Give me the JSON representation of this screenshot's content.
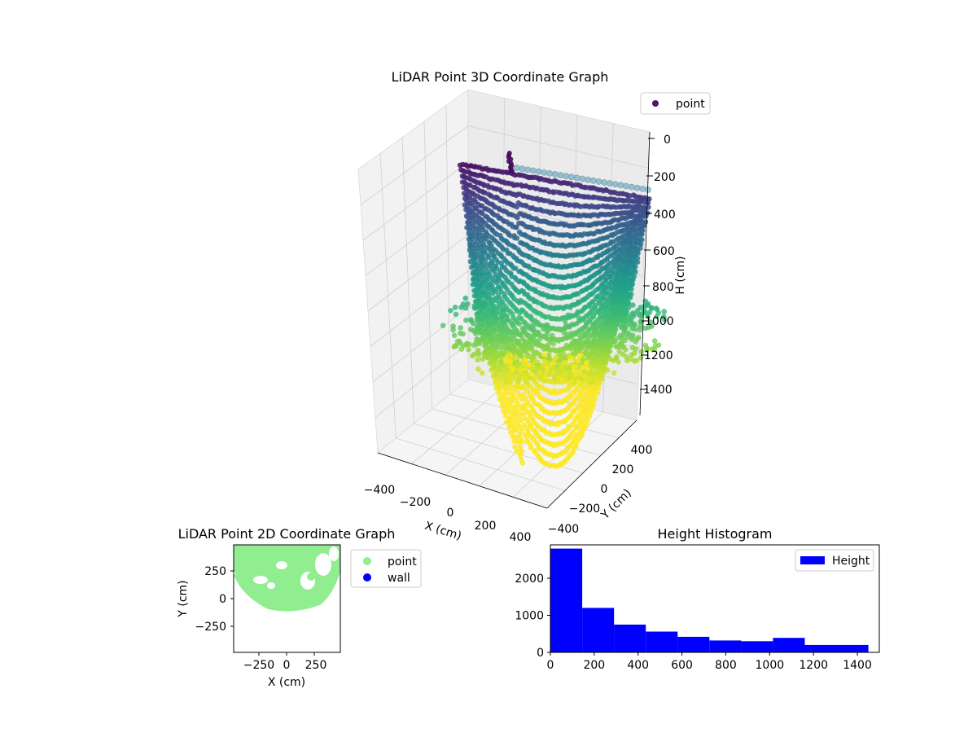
{
  "chart_data": [
    {
      "type": "scatter3d",
      "title": "LiDAR Point 3D Coordinate Graph",
      "xlabel": "X (cm)",
      "ylabel": "Y (cm)",
      "zlabel": "H (cm)",
      "x_ticks": [
        "−400",
        "−200",
        "0",
        "200",
        "400"
      ],
      "y_ticks": [
        "−400",
        "−200",
        "0",
        "200",
        "400"
      ],
      "z_ticks": [
        "0",
        "200",
        "400",
        "600",
        "800",
        "1000",
        "1200",
        "1400"
      ],
      "zlim_inverted": [
        0,
        1400
      ],
      "colormap": "viridis",
      "grid": true,
      "legend": {
        "placement": "top-right",
        "entries": [
          {
            "label": "point",
            "color": "#4a1a6f"
          }
        ]
      }
    },
    {
      "type": "scatter",
      "title": "LiDAR Point 2D Coordinate Graph",
      "xlabel": "X (cm)",
      "ylabel": "Y (cm)",
      "xlim": [
        -500,
        500
      ],
      "ylim": [
        -500,
        500
      ],
      "x_ticks": [
        "−250",
        "0",
        "250"
      ],
      "y_ticks": [
        "250",
        "0",
        "−250"
      ],
      "series": [
        {
          "name": "point",
          "color": "#90ee90"
        },
        {
          "name": "wall",
          "color": "#0000ff"
        }
      ],
      "legend": {
        "placement": "outside-right"
      }
    },
    {
      "type": "bar",
      "title": "Height Histogram",
      "xlim": [
        0,
        1500
      ],
      "ylim": [
        0,
        2900
      ],
      "x_ticks": [
        "0",
        "200",
        "400",
        "600",
        "800",
        "1000",
        "1200",
        "1400"
      ],
      "y_ticks": [
        "0",
        "1000",
        "2000"
      ],
      "bin_edges": [
        0,
        145,
        290,
        435,
        580,
        725,
        870,
        1015,
        1160,
        1305,
        1450
      ],
      "values": [
        2800,
        1200,
        750,
        560,
        420,
        320,
        300,
        390,
        200,
        200
      ],
      "series": [
        {
          "name": "Height",
          "color": "#0000ff"
        }
      ],
      "legend": {
        "placement": "top-right"
      }
    }
  ]
}
